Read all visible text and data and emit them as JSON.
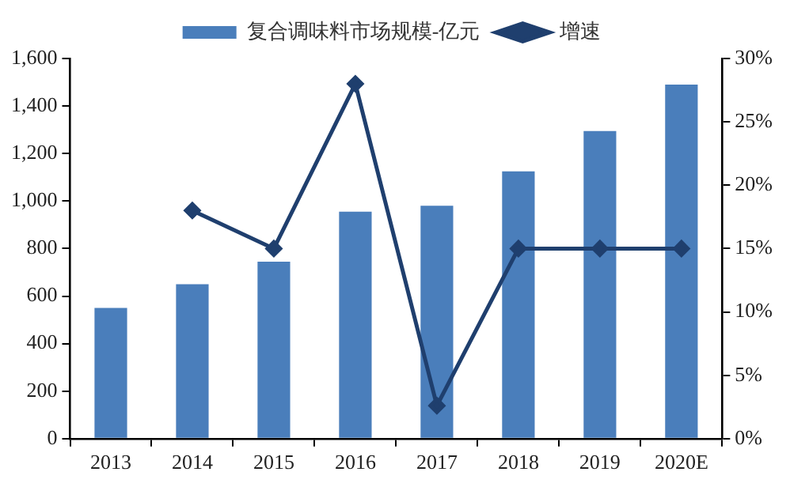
{
  "chart_data": {
    "type": "bar",
    "categories": [
      "2013",
      "2014",
      "2015",
      "2016",
      "2017",
      "2018",
      "2019",
      "2020E"
    ],
    "series": [
      {
        "name": "复合调味料市场规模-亿元",
        "color": "#4a7ebb",
        "values": [
          550,
          650,
          745,
          955,
          980,
          1125,
          1295,
          1490
        ]
      },
      {
        "name": "增速",
        "type": "line",
        "axis": "y2",
        "color": "#1f3f6e",
        "marker": "diamond",
        "values": [
          null,
          18,
          15,
          28,
          2.6,
          15,
          15,
          15
        ]
      }
    ],
    "ylim": [
      0,
      1600
    ],
    "yticks": [
      0,
      200,
      400,
      600,
      800,
      {
        "value": 1000,
        "label": "1,000"
      },
      {
        "value": 1200,
        "label": "1,200"
      },
      {
        "value": 1400,
        "label": "1,400"
      },
      {
        "value": 1600,
        "label": "1,600"
      }
    ],
    "y2lim": [
      0,
      30
    ],
    "y2ticks": [
      {
        "value": 0,
        "label": "0%"
      },
      {
        "value": 5,
        "label": "5%"
      },
      {
        "value": 10,
        "label": "10%"
      },
      {
        "value": 15,
        "label": "15%"
      },
      {
        "value": 20,
        "label": "20%"
      },
      {
        "value": 25,
        "label": "25%"
      },
      {
        "value": 30,
        "label": "30%"
      }
    ],
    "grid": false,
    "legend": "top"
  }
}
